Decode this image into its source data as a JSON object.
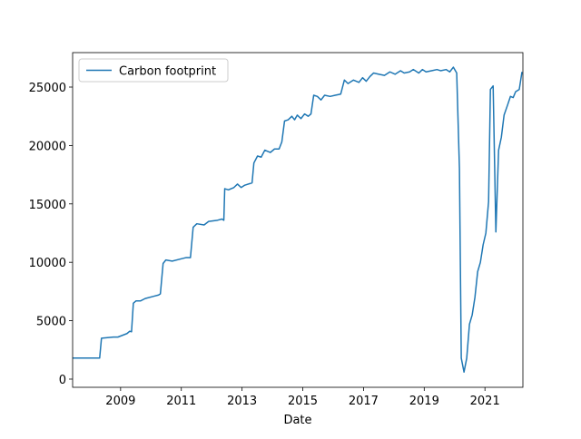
{
  "chart_data": {
    "type": "line",
    "x_label": "Date",
    "x": [
      2007.42,
      2008.31,
      2008.37,
      2008.76,
      2008.91,
      2009.21,
      2009.3,
      2009.36,
      2009.42,
      2009.51,
      2009.66,
      2009.81,
      2010.1,
      2010.25,
      2010.31,
      2010.4,
      2010.49,
      2010.7,
      2011.0,
      2011.15,
      2011.3,
      2011.39,
      2011.51,
      2011.75,
      2011.9,
      2012.19,
      2012.34,
      2012.4,
      2012.43,
      2012.55,
      2012.73,
      2012.85,
      2012.97,
      2013.09,
      2013.33,
      2013.39,
      2013.51,
      2013.63,
      2013.75,
      2013.93,
      2014.07,
      2014.22,
      2014.31,
      2014.4,
      2014.52,
      2014.64,
      2014.73,
      2014.82,
      2014.94,
      2015.06,
      2015.18,
      2015.27,
      2015.36,
      2015.48,
      2015.6,
      2015.72,
      2015.9,
      2016.07,
      2016.25,
      2016.37,
      2016.49,
      2016.67,
      2016.85,
      2016.97,
      2017.09,
      2017.21,
      2017.33,
      2017.51,
      2017.69,
      2017.87,
      2018.04,
      2018.22,
      2018.34,
      2018.52,
      2018.64,
      2018.82,
      2018.94,
      2019.06,
      2019.24,
      2019.42,
      2019.54,
      2019.72,
      2019.84,
      2019.96,
      2020.07,
      2020.16,
      2020.22,
      2020.31,
      2020.4,
      2020.49,
      2020.58,
      2020.67,
      2020.76,
      2020.85,
      2020.94,
      2021.03,
      2021.12,
      2021.18,
      2021.27,
      2021.36,
      2021.45,
      2021.54,
      2021.63,
      2021.75,
      2021.84,
      2021.93,
      2022.01,
      2022.13,
      2022.22
    ],
    "series": [
      {
        "name": "Carbon footprint",
        "color": "#1f77b4",
        "values": [
          1800,
          1800,
          3500,
          3600,
          3600,
          3900,
          4100,
          4050,
          6500,
          6700,
          6700,
          6900,
          7100,
          7200,
          7300,
          9900,
          10200,
          10100,
          10300,
          10400,
          10400,
          13000,
          13300,
          13200,
          13500,
          13600,
          13700,
          13600,
          16300,
          16200,
          16400,
          16700,
          16400,
          16600,
          16800,
          18500,
          19100,
          19000,
          19600,
          19400,
          19700,
          19700,
          20300,
          22100,
          22200,
          22500,
          22200,
          22600,
          22300,
          22700,
          22500,
          22700,
          24300,
          24200,
          23900,
          24300,
          24200,
          24300,
          24400,
          25600,
          25300,
          25600,
          25400,
          25800,
          25500,
          25900,
          26200,
          26100,
          26000,
          26300,
          26100,
          26400,
          26200,
          26300,
          26500,
          26200,
          26500,
          26300,
          26400,
          26500,
          26400,
          26500,
          26300,
          26700,
          26200,
          18000,
          1800,
          600,
          1800,
          4700,
          5500,
          7000,
          9200,
          10000,
          11500,
          12500,
          15200,
          24800,
          25100,
          12600,
          19600,
          20700,
          22600,
          23500,
          24200,
          24100,
          24600,
          24800,
          26300
        ]
      }
    ],
    "xlim": [
      2007.42,
      2022.25
    ],
    "xticks": [
      2009,
      2011,
      2013,
      2015,
      2017,
      2019,
      2021
    ],
    "ylim": [
      -700,
      27950
    ],
    "yticks": [
      0,
      5000,
      10000,
      15000,
      20000,
      25000
    ],
    "legend": "upper left",
    "grid": false
  }
}
